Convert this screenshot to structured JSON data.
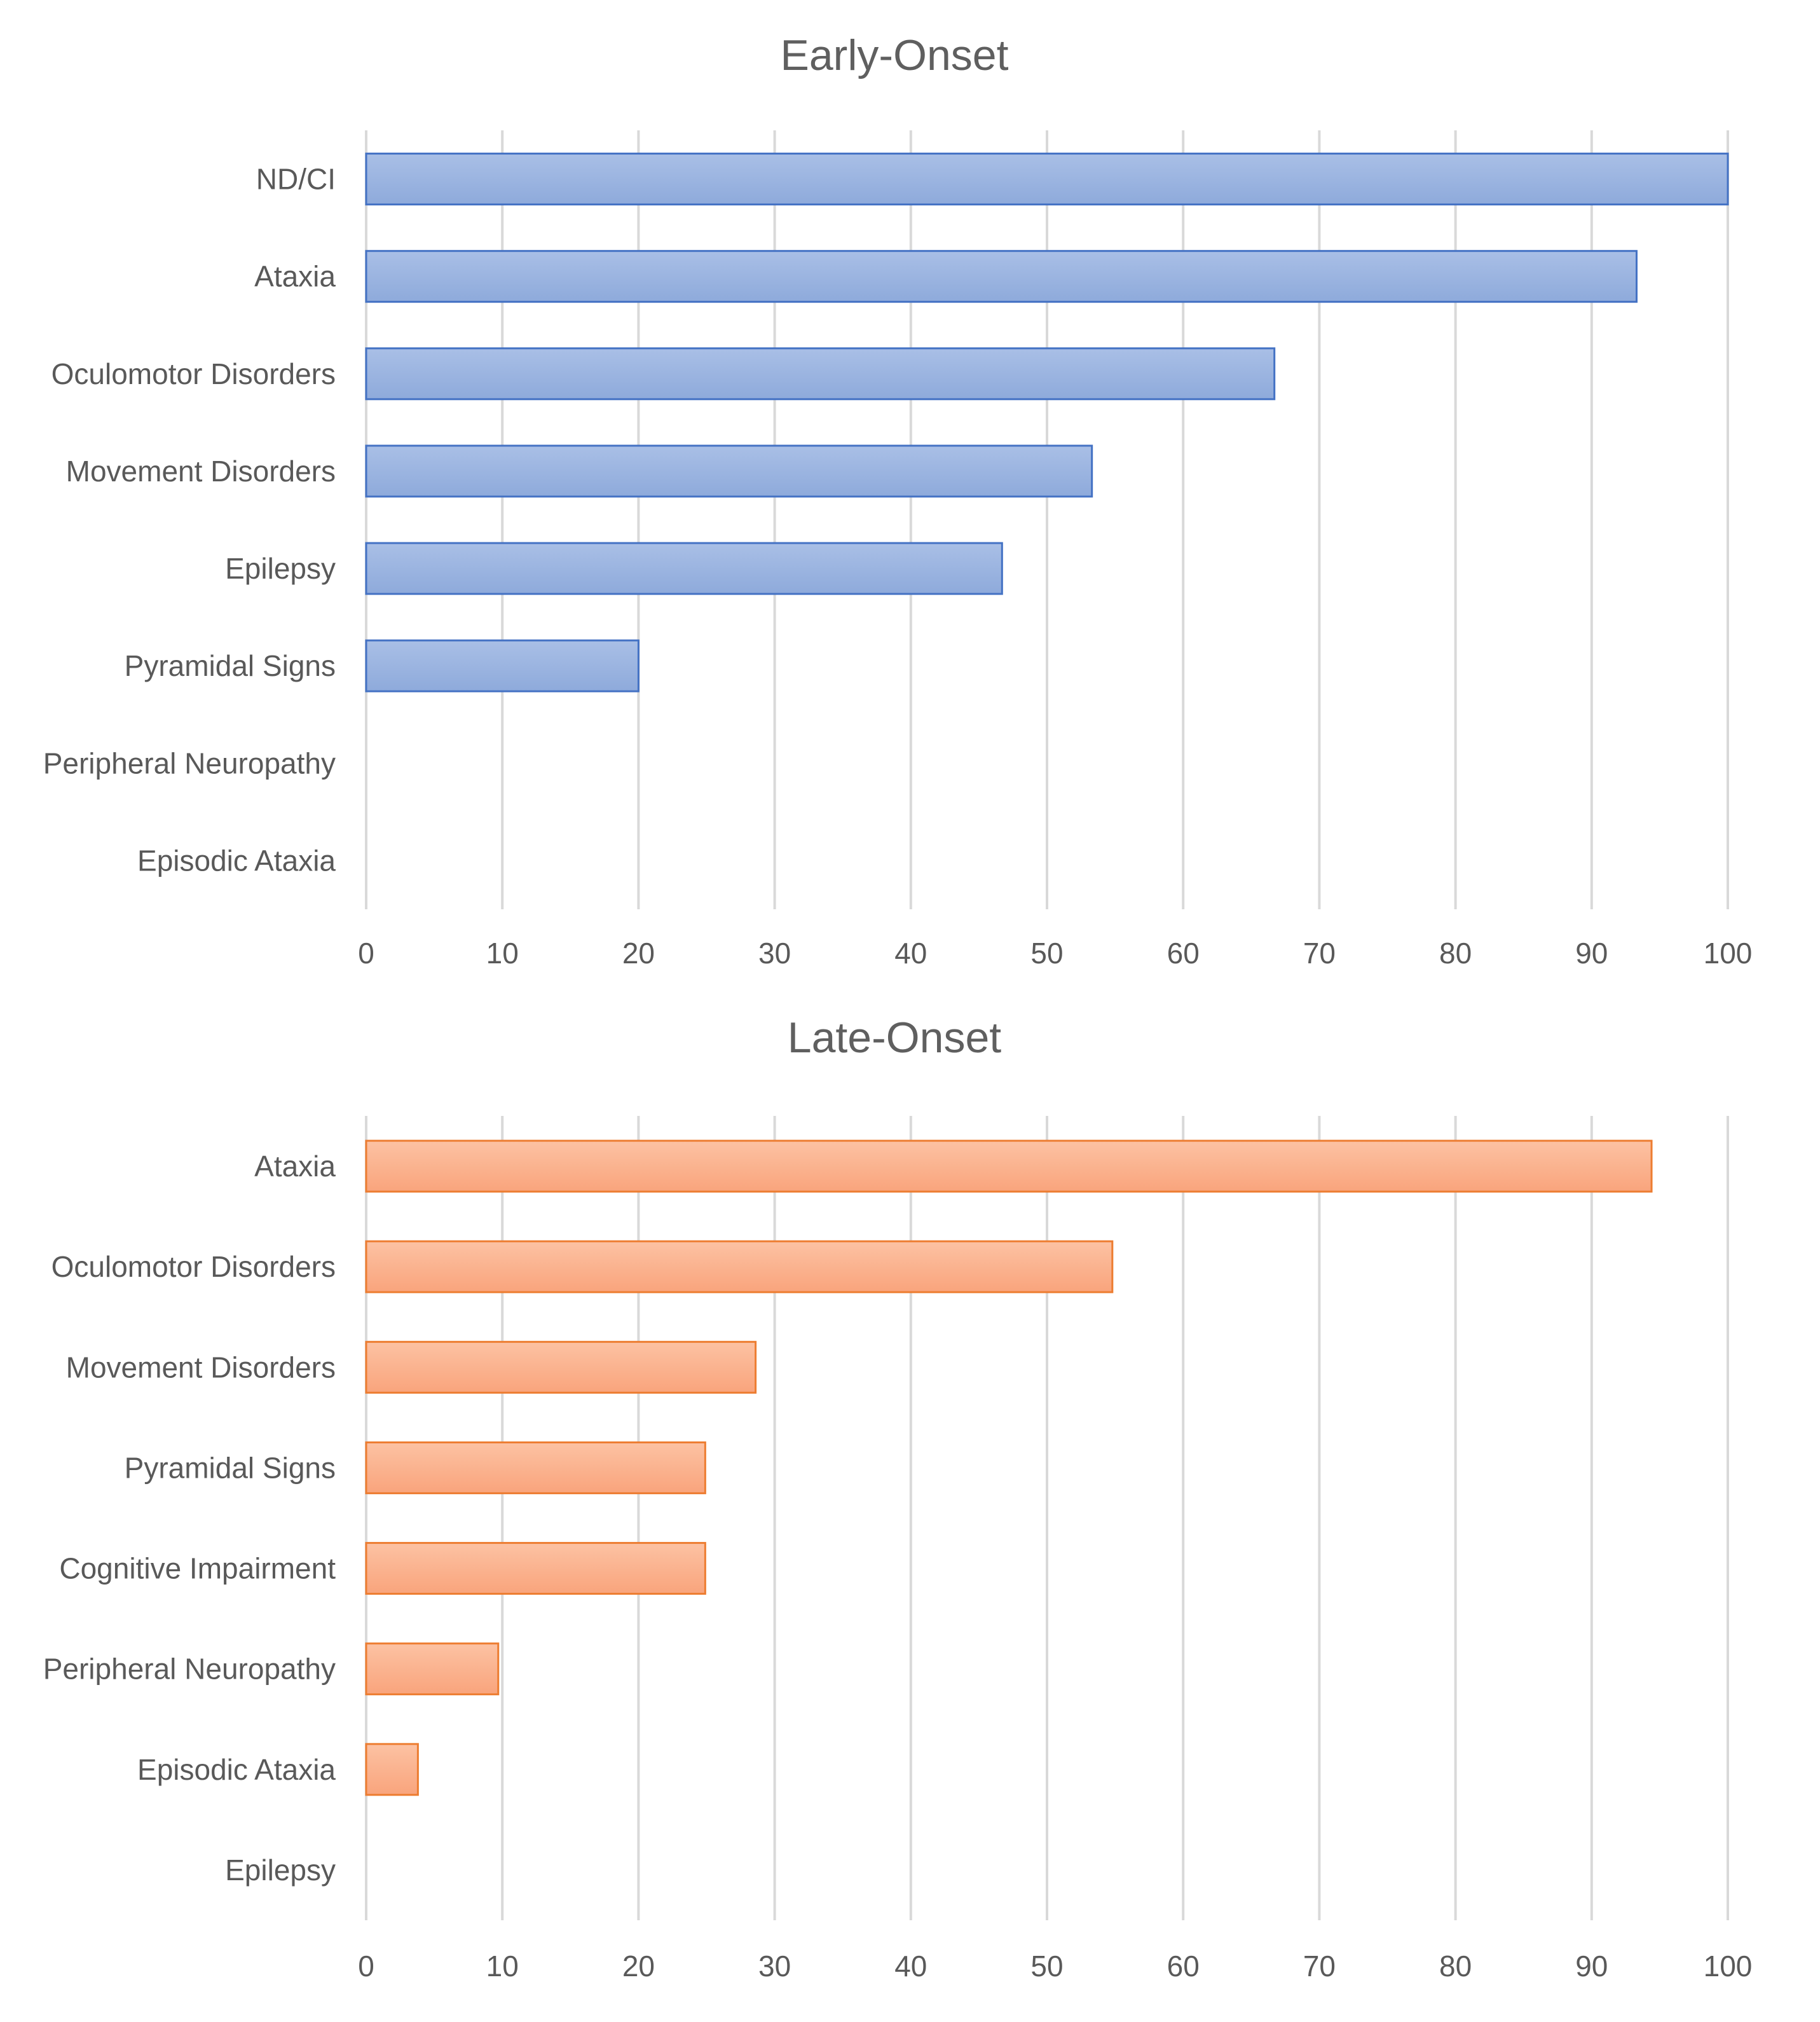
{
  "chart_data": [
    {
      "type": "bar",
      "orientation": "horizontal",
      "title": "Early-Onset",
      "categories": [
        "ND/CI",
        "Ataxia",
        "Oculomotor Disorders",
        "Movement Disorders",
        "Epilepsy",
        "Pyramidal Signs",
        "Peripheral Neuropathy",
        "Episodic Ataxia"
      ],
      "values": [
        100,
        93.3,
        66.7,
        53.3,
        46.7,
        20,
        0,
        0
      ],
      "xlim": [
        0,
        100
      ],
      "xticks": [
        "0",
        "10",
        "20",
        "30",
        "40",
        "50",
        "60",
        "70",
        "80",
        "90",
        "100"
      ],
      "grid": true,
      "legend": "none",
      "color": "#8eaadb",
      "color_light": "#a9bfe6",
      "edge_color": "#4472c4"
    },
    {
      "type": "bar",
      "orientation": "horizontal",
      "title": "Late-Onset",
      "categories": [
        "Ataxia",
        "Oculomotor Disorders",
        "Movement Disorders",
        "Pyramidal Signs",
        "Cognitive Impairment",
        "Peripheral Neuropathy",
        "Episodic Ataxia",
        "Epilepsy"
      ],
      "values": [
        94.4,
        54.8,
        28.6,
        24.9,
        24.9,
        9.7,
        3.8,
        0
      ],
      "xlim": [
        0,
        100
      ],
      "xticks": [
        "0",
        "10",
        "20",
        "30",
        "40",
        "50",
        "60",
        "70",
        "80",
        "90",
        "100"
      ],
      "grid": true,
      "legend": "none",
      "color": "#f9a47c",
      "color_light": "#fcc2a3",
      "edge_color": "#ed7d31"
    }
  ]
}
